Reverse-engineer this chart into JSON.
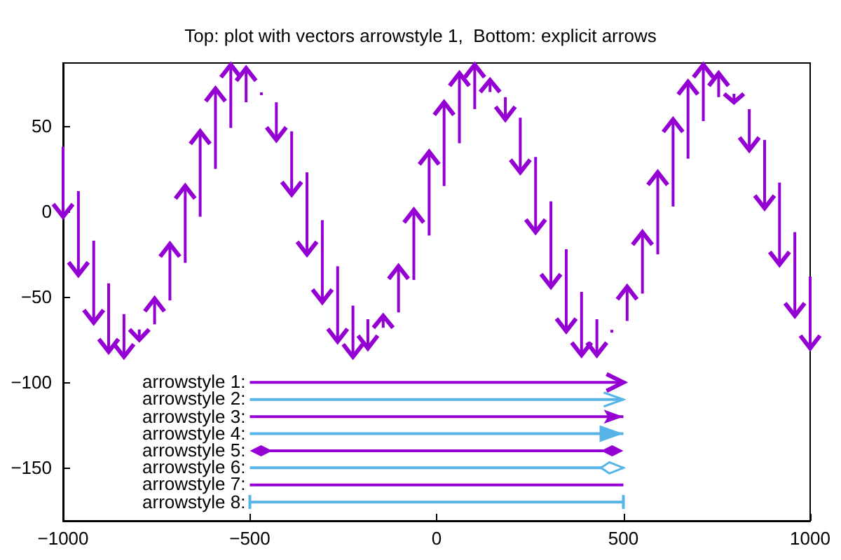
{
  "chart_data": {
    "type": "bar",
    "title": "Top: plot with vectors arrowstyle 1,  Bottom: explicit arrows",
    "x": [
      -1000,
      -959,
      -918,
      -878,
      -837,
      -796,
      -755,
      -714,
      -673,
      -633,
      -592,
      -551,
      -510,
      -469,
      -429,
      -388,
      -347,
      -306,
      -265,
      -224,
      -184,
      -143,
      -102,
      -61,
      -20,
      20,
      61,
      102,
      143,
      184,
      224,
      265,
      306,
      347,
      388,
      429,
      469,
      510,
      551,
      592,
      633,
      673,
      714,
      755,
      796,
      837,
      878,
      918,
      959,
      1000
    ],
    "base": [
      38,
      12,
      -17,
      -42,
      -60,
      -69,
      -66,
      -52,
      -30,
      -3,
      25,
      49,
      64,
      69,
      64,
      47,
      23,
      -5,
      -32,
      -55,
      -63,
      -68,
      -59,
      -40,
      -14,
      15,
      40,
      60,
      70,
      67,
      55,
      32,
      6,
      -22,
      -47,
      -63,
      -70,
      -64,
      -48,
      -25,
      3,
      31,
      53,
      67,
      69,
      60,
      42,
      17,
      -12,
      -38
    ],
    "values": [
      -41,
      -49,
      -48,
      -40,
      -25,
      -6,
      15,
      33,
      45,
      50,
      47,
      37,
      20,
      0,
      -22,
      -37,
      -48,
      -48,
      -44,
      -30,
      -17,
      7,
      27,
      41,
      49,
      49,
      41,
      26,
      7,
      -13,
      -32,
      -44,
      -50,
      -48,
      -37,
      -21,
      0,
      20,
      36,
      48,
      51,
      45,
      33,
      14,
      -5,
      -24,
      -40,
      -48,
      -49,
      -42
    ],
    "color": "#9400d3",
    "xlim": [
      -1000,
      1000
    ],
    "xticks": [
      -1000,
      -500,
      0,
      500,
      1000
    ],
    "ylim": [
      -181,
      87
    ],
    "yticks": [
      -150,
      -100,
      -50,
      0,
      50
    ],
    "grid": false,
    "annotations": [
      "arrowstyle 1:",
      "arrowstyle 2:",
      "arrowstyle 3:",
      "arrowstyle 4:",
      "arrowstyle 5:",
      "arrowstyle 6:",
      "arrowstyle 7:",
      "arrowstyle 8:"
    ]
  }
}
